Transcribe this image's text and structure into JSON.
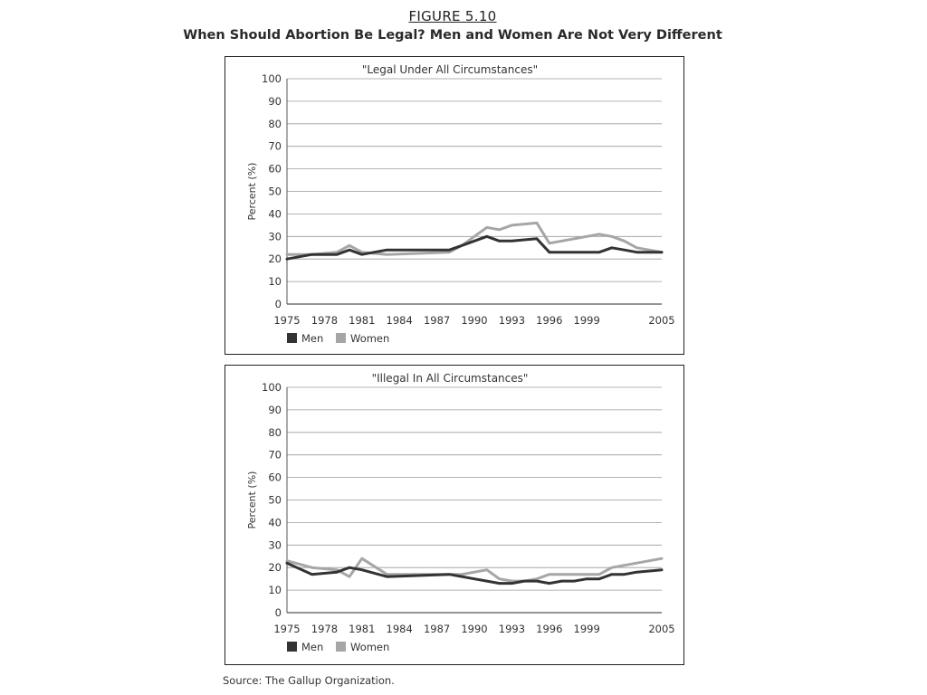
{
  "figure": {
    "label": "FIGURE 5.10",
    "title": "When Should Abortion Be Legal? Men and Women Are Not Very Different",
    "source": "Source: The Gallup Organization."
  },
  "colors": {
    "men": "#333333",
    "women": "#a6a6a6",
    "grid": "#9a9a9a"
  },
  "chart_data": [
    {
      "type": "line",
      "title": "\"Legal Under All Circumstances\"",
      "xlabel": "",
      "ylabel": "Percent (%)",
      "xlim": [
        1975,
        2005
      ],
      "ylim": [
        0,
        100
      ],
      "yticks": [
        0,
        10,
        20,
        30,
        40,
        50,
        60,
        70,
        80,
        90,
        100
      ],
      "xticks": [
        "1975",
        "1978",
        "1981",
        "1984",
        "1987",
        "1990",
        "1993",
        "1996",
        "1999",
        "2005"
      ],
      "grid": true,
      "legend": "bottom-left",
      "series": [
        {
          "name": "Men",
          "x": [
            1975,
            1977,
            1979,
            1980,
            1981,
            1983,
            1988,
            1989,
            1990,
            1991,
            1992,
            1993,
            1994,
            1995,
            1996,
            1997,
            1998,
            1999,
            2000,
            2001,
            2002,
            2003,
            2005
          ],
          "y": [
            20,
            22,
            22,
            24,
            22,
            24,
            24,
            26,
            28,
            30,
            28,
            28,
            28.5,
            29,
            23,
            23,
            23,
            23,
            23,
            25,
            24,
            23,
            23
          ]
        },
        {
          "name": "Women",
          "x": [
            1975,
            1977,
            1979,
            1980,
            1981,
            1983,
            1988,
            1989,
            1990,
            1991,
            1992,
            1993,
            1994,
            1995,
            1996,
            1997,
            1998,
            1999,
            2000,
            2001,
            2002,
            2003,
            2005
          ],
          "y": [
            22,
            22,
            23,
            26,
            23,
            22,
            23,
            26,
            30,
            34,
            33,
            35,
            35.5,
            36,
            27,
            28,
            29,
            30,
            31,
            30,
            28,
            25,
            23
          ]
        }
      ]
    },
    {
      "type": "line",
      "title": "\"Illegal In All Circumstances\"",
      "xlabel": "",
      "ylabel": "Percent (%)",
      "xlim": [
        1975,
        2005
      ],
      "ylim": [
        0,
        100
      ],
      "yticks": [
        0,
        10,
        20,
        30,
        40,
        50,
        60,
        70,
        80,
        90,
        100
      ],
      "xticks": [
        "1975",
        "1978",
        "1981",
        "1984",
        "1987",
        "1990",
        "1993",
        "1996",
        "1999",
        "2005"
      ],
      "grid": true,
      "legend": "bottom-left",
      "series": [
        {
          "name": "Men",
          "x": [
            1975,
            1977,
            1979,
            1980,
            1981,
            1983,
            1988,
            1989,
            1990,
            1991,
            1992,
            1993,
            1994,
            1995,
            1996,
            1997,
            1998,
            1999,
            2000,
            2001,
            2002,
            2003,
            2005
          ],
          "y": [
            22,
            17,
            18,
            20,
            19,
            16,
            17,
            16,
            15,
            14,
            13,
            13,
            14,
            14,
            13,
            14,
            14,
            15,
            15,
            17,
            17,
            18,
            19
          ]
        },
        {
          "name": "Women",
          "x": [
            1975,
            1977,
            1979,
            1980,
            1981,
            1983,
            1988,
            1989,
            1990,
            1991,
            1992,
            1993,
            1994,
            1995,
            1996,
            1997,
            1998,
            1999,
            2000,
            2001,
            2002,
            2003,
            2005
          ],
          "y": [
            23,
            20,
            19,
            16,
            24,
            17,
            17,
            17,
            18,
            19,
            15,
            14,
            14,
            15,
            17,
            17,
            17,
            17,
            17,
            20,
            21,
            22,
            24
          ]
        }
      ]
    }
  ]
}
